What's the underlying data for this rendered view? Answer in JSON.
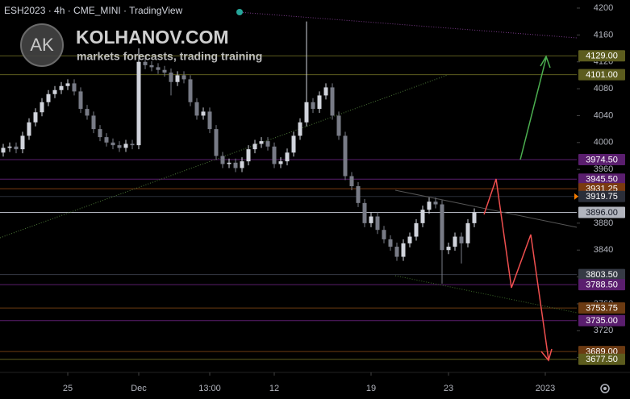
{
  "chart_data": {
    "type": "candlestick",
    "title": "ESH2023 · 4h · CME_MINI · TradingView",
    "annotations": [
      "AK",
      "KOLHANOV.COM",
      "markets forecasts, trading training"
    ],
    "up_color": "#d1d4dc",
    "down_color": "#787b86",
    "open": [
      3985,
      3992,
      3994,
      3990,
      4010,
      4030,
      4045,
      4060,
      4072,
      4078,
      4084,
      4088,
      4076,
      4050,
      4040,
      4020,
      4008,
      4000,
      3996,
      3992,
      3998,
      3996,
      4120,
      4115,
      4112,
      4108,
      4104,
      4090,
      4100,
      4094,
      4060,
      4040,
      4046,
      4020,
      3980,
      3968,
      3970,
      3962,
      3972,
      3990,
      3998,
      4002,
      3994,
      3968,
      3972,
      3985,
      4010,
      4030,
      4060,
      4050,
      4070,
      4082,
      4040,
      4010,
      3950,
      3935,
      3910,
      3880,
      3890,
      3870,
      3856,
      3845,
      3830,
      3850,
      3860,
      3880,
      3900,
      3912,
      3908,
      3840,
      3845,
      3860,
      3850,
      3880
    ],
    "high": [
      3998,
      4000,
      4000,
      4016,
      4036,
      4051,
      4066,
      4078,
      4084,
      4090,
      4094,
      4094,
      4082,
      4056,
      4046,
      4026,
      4014,
      4006,
      4002,
      4004,
      4004,
      4140,
      4126,
      4121,
      4118,
      4114,
      4110,
      4106,
      4106,
      4100,
      4066,
      4052,
      4052,
      4026,
      3986,
      3976,
      3976,
      3978,
      3996,
      4004,
      4008,
      4008,
      4000,
      3978,
      3991,
      4016,
      4036,
      4180,
      4066,
      4076,
      4088,
      4088,
      4046,
      4016,
      3956,
      3941,
      3916,
      3896,
      3896,
      3876,
      3862,
      3851,
      3856,
      3866,
      3886,
      3906,
      3918,
      3918,
      3914,
      3851,
      3866,
      3866,
      3886,
      3902
    ],
    "low": [
      3979,
      3986,
      3984,
      3984,
      4004,
      4024,
      4039,
      4054,
      4066,
      4072,
      4078,
      4070,
      4044,
      4034,
      4014,
      4002,
      3994,
      3990,
      3986,
      3986,
      3990,
      3990,
      4109,
      4106,
      4102,
      4098,
      4070,
      4084,
      4088,
      4054,
      4034,
      4034,
      4014,
      3974,
      3962,
      3962,
      3956,
      3956,
      3966,
      3984,
      3992,
      3988,
      3962,
      3962,
      3966,
      3979,
      4004,
      4024,
      4044,
      4044,
      4064,
      4034,
      4004,
      3944,
      3929,
      3904,
      3874,
      3874,
      3864,
      3850,
      3839,
      3824,
      3824,
      3844,
      3854,
      3874,
      3894,
      3902,
      3790,
      3834,
      3839,
      3820,
      3844,
      3874
    ],
    "close": [
      3992,
      3994,
      3990,
      4010,
      4030,
      4045,
      4060,
      4072,
      4078,
      4084,
      4088,
      4076,
      4050,
      4040,
      4020,
      4008,
      4000,
      3996,
      3992,
      3998,
      3996,
      4120,
      4115,
      4112,
      4108,
      4104,
      4090,
      4100,
      4094,
      4060,
      4040,
      4046,
      4020,
      3980,
      3968,
      3970,
      3962,
      3972,
      3990,
      3998,
      4002,
      3994,
      3968,
      3972,
      3985,
      4010,
      4030,
      4060,
      4050,
      4070,
      4082,
      4040,
      4010,
      3950,
      3935,
      3910,
      3880,
      3890,
      3870,
      3856,
      3845,
      3830,
      3850,
      3860,
      3880,
      3900,
      3912,
      3908,
      3840,
      3845,
      3860,
      3850,
      3880,
      3896
    ],
    "ylim": [
      3658,
      4212
    ],
    "yticks": [
      4200,
      4160,
      4120,
      4080,
      4040,
      4000,
      3960,
      3920,
      3880,
      3840,
      3800,
      3760,
      3720,
      3680
    ],
    "xticks": [
      {
        "value": 10,
        "label": "25"
      },
      {
        "value": 21,
        "label": "Dec"
      },
      {
        "value": 32,
        "label": "13:00"
      },
      {
        "value": 42,
        "label": "12"
      },
      {
        "value": 57,
        "label": "19"
      },
      {
        "value": 69,
        "label": "23"
      },
      {
        "value": 84,
        "label": "2023"
      }
    ],
    "levels": [
      {
        "value": 4129,
        "label": "4129.00",
        "color": "#5c5c1e"
      },
      {
        "value": 4101,
        "label": "4101.00",
        "color": "#5c5c1e"
      },
      {
        "value": 3974.5,
        "label": "3974.50",
        "color": "#5a1e6e"
      },
      {
        "value": 3945.5,
        "label": "3945.50",
        "color": "#5a1e6e"
      },
      {
        "value": 3931.25,
        "label": "3931.25",
        "color": "#7a3a10"
      },
      {
        "value": 3919.75,
        "label": "3919.75",
        "color": "#2a2e39"
      },
      {
        "value": 3896,
        "label": "3896.00",
        "color": "#b2b5be"
      },
      {
        "value": 3803.5,
        "label": "3803.50",
        "color": "#363a45"
      },
      {
        "value": 3788.5,
        "label": "3788.50",
        "color": "#5a1e6e"
      },
      {
        "value": 3753.75,
        "label": "3753.75",
        "color": "#6b3a12"
      },
      {
        "value": 3735,
        "label": "3735.00",
        "color": "#5a1e6e"
      },
      {
        "value": 3689,
        "label": "3689.00",
        "color": "#6b3a12"
      },
      {
        "value": 3677.5,
        "label": "3677.50",
        "color": "#5c5c1e"
      }
    ]
  }
}
